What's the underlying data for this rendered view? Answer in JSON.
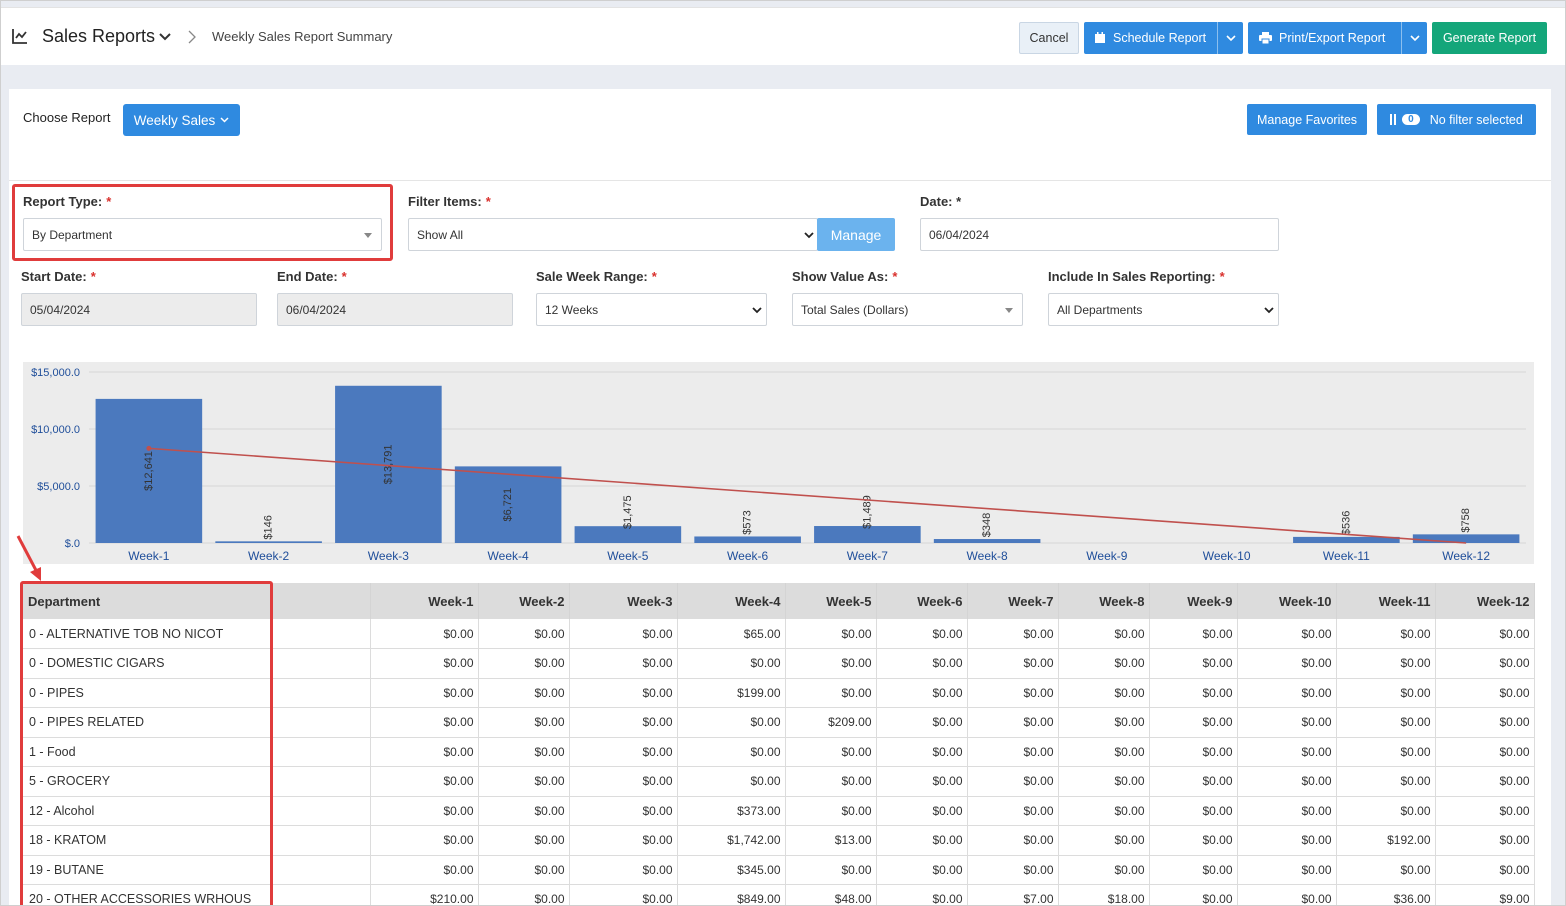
{
  "header": {
    "title": "Sales Reports",
    "breadcrumb": "Weekly Sales Report Summary",
    "cancel": "Cancel",
    "schedule": "Schedule Report",
    "print": "Print/Export Report",
    "generate": "Generate Report"
  },
  "toolbar": {
    "choose_label": "Choose Report",
    "choose_value": "Weekly Sales",
    "manage_favorites": "Manage Favorites",
    "filter_count": "0",
    "filter_text": "No filter selected"
  },
  "form": {
    "report_type": {
      "label": "Report Type:",
      "value": "By Department"
    },
    "filter_items": {
      "label": "Filter Items:",
      "value": "Show All",
      "manage": "Manage"
    },
    "date": {
      "label": "Date: *",
      "value": "06/04/2024"
    },
    "start_date": {
      "label": "Start Date:",
      "value": "05/04/2024"
    },
    "end_date": {
      "label": "End Date:",
      "value": "06/04/2024"
    },
    "week_range": {
      "label": "Sale Week Range:",
      "value": "12 Weeks"
    },
    "show_value": {
      "label": "Show Value As:",
      "value": "Total Sales (Dollars)"
    },
    "include": {
      "label": "Include In Sales Reporting:",
      "value": "All Departments"
    },
    "required_mark": "*"
  },
  "colors": {
    "accent": "#2f8ae0",
    "green": "#14a67a",
    "bar": "#4b79be",
    "trend": "#c0504d",
    "highlight": "#e03c3c"
  },
  "chart_data": {
    "type": "bar",
    "categories": [
      "Week-1",
      "Week-2",
      "Week-3",
      "Week-4",
      "Week-5",
      "Week-6",
      "Week-7",
      "Week-8",
      "Week-9",
      "Week-10",
      "Week-11",
      "Week-12"
    ],
    "values": [
      12641,
      146,
      13791,
      6721,
      1475,
      573,
      1489,
      348,
      0,
      0,
      536,
      758
    ],
    "value_labels": [
      "$12,641",
      "$146",
      "$13,791",
      "$6,721",
      "$1,475",
      "$573",
      "$1,489",
      "$348",
      "",
      "",
      "$536",
      "$758"
    ],
    "yticks": [
      "$15,000.0",
      "$10,000.0",
      "$5,000.0",
      "$.0"
    ],
    "ylim": [
      0,
      15000
    ],
    "trendline": {
      "start": 8300,
      "end": 0
    },
    "grid": true
  },
  "table": {
    "headers": [
      "Department",
      "Week-1",
      "Week-2",
      "Week-3",
      "Week-4",
      "Week-5",
      "Week-6",
      "Week-7",
      "Week-8",
      "Week-9",
      "Week-10",
      "Week-11",
      "Week-12"
    ],
    "rows": [
      [
        "0 - ALTERNATIVE TOB NO NICOT",
        "$0.00",
        "$0.00",
        "$0.00",
        "$65.00",
        "$0.00",
        "$0.00",
        "$0.00",
        "$0.00",
        "$0.00",
        "$0.00",
        "$0.00",
        "$0.00"
      ],
      [
        "0 - DOMESTIC CIGARS",
        "$0.00",
        "$0.00",
        "$0.00",
        "$0.00",
        "$0.00",
        "$0.00",
        "$0.00",
        "$0.00",
        "$0.00",
        "$0.00",
        "$0.00",
        "$0.00"
      ],
      [
        "0 - PIPES",
        "$0.00",
        "$0.00",
        "$0.00",
        "$199.00",
        "$0.00",
        "$0.00",
        "$0.00",
        "$0.00",
        "$0.00",
        "$0.00",
        "$0.00",
        "$0.00"
      ],
      [
        "0 - PIPES RELATED",
        "$0.00",
        "$0.00",
        "$0.00",
        "$0.00",
        "$209.00",
        "$0.00",
        "$0.00",
        "$0.00",
        "$0.00",
        "$0.00",
        "$0.00",
        "$0.00"
      ],
      [
        "1 - Food",
        "$0.00",
        "$0.00",
        "$0.00",
        "$0.00",
        "$0.00",
        "$0.00",
        "$0.00",
        "$0.00",
        "$0.00",
        "$0.00",
        "$0.00",
        "$0.00"
      ],
      [
        "5 - GROCERY",
        "$0.00",
        "$0.00",
        "$0.00",
        "$0.00",
        "$0.00",
        "$0.00",
        "$0.00",
        "$0.00",
        "$0.00",
        "$0.00",
        "$0.00",
        "$0.00"
      ],
      [
        "12 - Alcohol",
        "$0.00",
        "$0.00",
        "$0.00",
        "$373.00",
        "$0.00",
        "$0.00",
        "$0.00",
        "$0.00",
        "$0.00",
        "$0.00",
        "$0.00",
        "$0.00"
      ],
      [
        "18 - KRATOM",
        "$0.00",
        "$0.00",
        "$0.00",
        "$1,742.00",
        "$13.00",
        "$0.00",
        "$0.00",
        "$0.00",
        "$0.00",
        "$0.00",
        "$192.00",
        "$0.00"
      ],
      [
        "19 - BUTANE",
        "$0.00",
        "$0.00",
        "$0.00",
        "$345.00",
        "$0.00",
        "$0.00",
        "$0.00",
        "$0.00",
        "$0.00",
        "$0.00",
        "$0.00",
        "$0.00"
      ],
      [
        "20 - OTHER ACCESSORIES WRHOUS",
        "$210.00",
        "$0.00",
        "$0.00",
        "$849.00",
        "$48.00",
        "$0.00",
        "$7.00",
        "$18.00",
        "$0.00",
        "$0.00",
        "$36.00",
        "$9.00"
      ]
    ]
  }
}
